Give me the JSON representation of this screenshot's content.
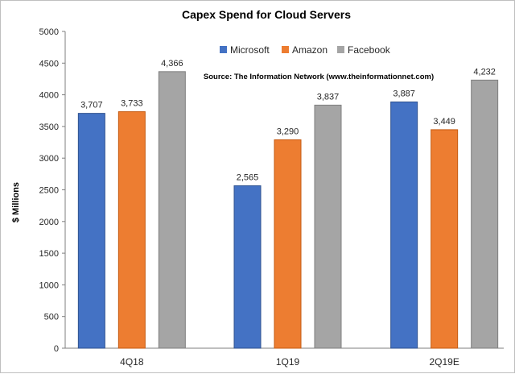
{
  "chart_data": {
    "type": "bar",
    "title": "Capex Spend for Cloud Servers",
    "ylabel": "$ Millions",
    "xlabel": "",
    "ylim": [
      0,
      5000
    ],
    "yticks": [
      0,
      500,
      1000,
      1500,
      2000,
      2500,
      3000,
      3500,
      4000,
      4500,
      5000
    ],
    "categories": [
      "4Q18",
      "1Q19",
      "2Q19E"
    ],
    "series": [
      {
        "name": "Microsoft",
        "color": "#4472C4",
        "values": [
          3707,
          2565,
          3887
        ],
        "labels": [
          "3,707",
          "2,565",
          "3,887"
        ]
      },
      {
        "name": "Amazon",
        "color": "#ED7D31",
        "values": [
          3733,
          3290,
          3449
        ],
        "labels": [
          "3,733",
          "3,290",
          "3,449"
        ]
      },
      {
        "name": "Facebook",
        "color": "#A5A5A5",
        "values": [
          4366,
          3837,
          4232
        ],
        "labels": [
          "4,366",
          "3,837",
          "4,232"
        ]
      }
    ],
    "legend_position": "top-right",
    "annotation": "Source: The Information Network (www.theinformationnet.com)",
    "grid": false
  }
}
